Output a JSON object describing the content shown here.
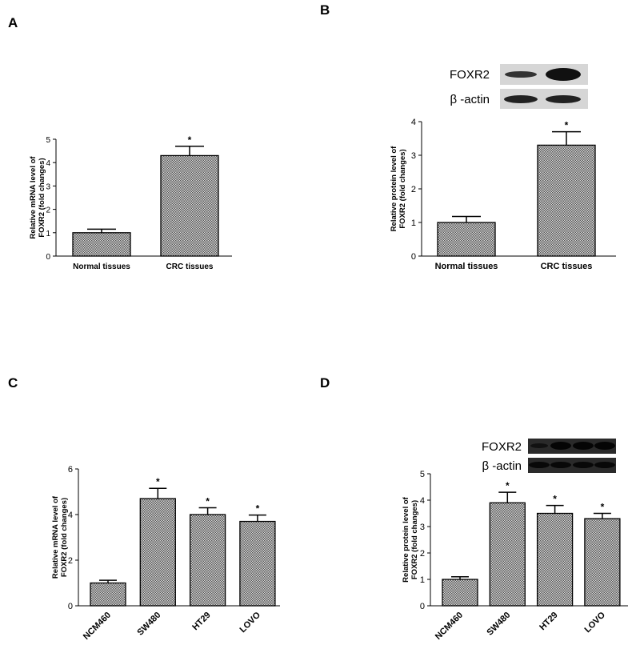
{
  "chart_data": [
    {
      "type": "bar",
      "panel": "A",
      "ylabel": [
        "Relative mRNA level of",
        "FOXR2 (fold changes)"
      ],
      "categories": [
        "Normal tissues",
        "CRC tissues"
      ],
      "values": [
        1.0,
        4.3
      ],
      "errors": [
        0.15,
        0.4
      ],
      "significance": [
        null,
        "*"
      ],
      "ylim": [
        0,
        5
      ],
      "yticks": [
        0,
        1,
        2,
        3,
        4,
        5
      ]
    },
    {
      "type": "bar",
      "panel": "B",
      "ylabel": [
        "Relative protein level of",
        "FOXR2 (fold changes)"
      ],
      "blot_labels": [
        "FOXR2",
        "β -actin"
      ],
      "categories": [
        "Normal tissues",
        "CRC tissues"
      ],
      "values": [
        1.0,
        3.3
      ],
      "errors": [
        0.18,
        0.4
      ],
      "significance": [
        null,
        "*"
      ],
      "ylim": [
        0,
        4
      ],
      "yticks": [
        0,
        1,
        2,
        3,
        4
      ]
    },
    {
      "type": "bar",
      "panel": "C",
      "ylabel": [
        "Relative mRNA level of",
        "FOXR2 (fold changes)"
      ],
      "categories": [
        "NCM460",
        "SW480",
        "HT29",
        "LOVO"
      ],
      "values": [
        1.0,
        4.7,
        4.0,
        3.7
      ],
      "errors": [
        0.12,
        0.45,
        0.3,
        0.28
      ],
      "significance": [
        null,
        "*",
        "*",
        "*"
      ],
      "ylim": [
        0,
        6
      ],
      "yticks": [
        0,
        2,
        4,
        6
      ]
    },
    {
      "type": "bar",
      "panel": "D",
      "ylabel": [
        "Relative protein level of",
        "FOXR2 (fold changes)"
      ],
      "blot_labels": [
        "FOXR2",
        "β -actin"
      ],
      "categories": [
        "NCM460",
        "SW480",
        "HT29",
        "LOVO"
      ],
      "values": [
        1.0,
        3.9,
        3.5,
        3.3
      ],
      "errors": [
        0.1,
        0.4,
        0.3,
        0.2
      ],
      "significance": [
        null,
        "*",
        "*",
        "*"
      ],
      "ylim": [
        0,
        5
      ],
      "yticks": [
        0,
        1,
        2,
        3,
        4,
        5
      ]
    }
  ]
}
